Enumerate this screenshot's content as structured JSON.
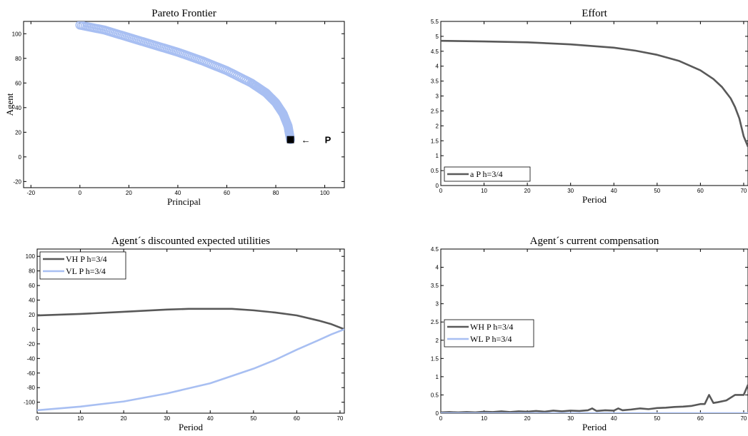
{
  "colors": {
    "dark": "#595959",
    "light": "#a8bff2",
    "axis": "#000000"
  },
  "chart_data": [
    {
      "type": "scatter",
      "title": "Pareto Frontier",
      "xlabel": "Principal",
      "ylabel": "Agent",
      "xlim": [
        -23,
        108
      ],
      "ylim": [
        -25,
        110
      ],
      "xticks": [
        -20,
        0,
        20,
        40,
        60,
        80,
        100
      ],
      "yticks": [
        -20,
        0,
        20,
        40,
        60,
        80,
        100
      ],
      "series": [
        {
          "color": "#a8bff2",
          "x": [
            0,
            10,
            20,
            30,
            40,
            50,
            60,
            70,
            76,
            80,
            83,
            85,
            86
          ],
          "y": [
            107,
            103,
            97,
            91,
            85,
            78,
            70,
            60,
            52,
            44,
            35,
            25,
            14
          ]
        }
      ],
      "point": {
        "x": 86,
        "y": 14,
        "label": "P",
        "arrow": "←"
      }
    },
    {
      "type": "line",
      "title": "Effort",
      "xlabel": "Period",
      "ylabel": "",
      "xlim": [
        0,
        71
      ],
      "ylim": [
        0,
        5.5
      ],
      "xticks": [
        0,
        10,
        20,
        30,
        40,
        50,
        60,
        70
      ],
      "yticks": [
        0,
        0.5,
        1,
        1.5,
        2,
        2.5,
        3,
        3.5,
        4,
        4.5,
        5,
        5.5
      ],
      "legend_position": "bottom-left",
      "series": [
        {
          "name": "a P h=3/4",
          "color": "#595959",
          "x": [
            0,
            10,
            20,
            30,
            40,
            45,
            50,
            55,
            60,
            63,
            65,
            67,
            68,
            69,
            70,
            71
          ],
          "y": [
            4.85,
            4.83,
            4.8,
            4.73,
            4.62,
            4.52,
            4.38,
            4.18,
            3.86,
            3.57,
            3.3,
            2.92,
            2.63,
            2.25,
            1.65,
            1.3
          ]
        }
      ]
    },
    {
      "type": "line",
      "title": "Agent´s discounted expected utilities",
      "xlabel": "Period",
      "ylabel": "",
      "xlim": [
        0,
        71
      ],
      "ylim": [
        -115,
        110
      ],
      "xticks": [
        0,
        10,
        20,
        30,
        40,
        50,
        60,
        70
      ],
      "yticks": [
        -100,
        -80,
        -60,
        -40,
        -20,
        0,
        20,
        40,
        60,
        80,
        100
      ],
      "legend_position": "top-left",
      "series": [
        {
          "name": "VH P h=3/4",
          "color": "#595959",
          "x": [
            0,
            10,
            20,
            30,
            35,
            40,
            45,
            50,
            55,
            60,
            65,
            68,
            71
          ],
          "y": [
            19,
            21,
            24,
            27,
            28,
            28,
            28,
            26,
            23,
            19,
            12,
            7,
            0
          ]
        },
        {
          "name": "VL P h=3/4",
          "color": "#a8bff2",
          "x": [
            0,
            10,
            20,
            30,
            40,
            50,
            55,
            60,
            65,
            68,
            71
          ],
          "y": [
            -111,
            -106,
            -99,
            -88,
            -74,
            -54,
            -42,
            -28,
            -15,
            -7,
            0
          ]
        }
      ]
    },
    {
      "type": "line",
      "title": "Agent´s current compensation",
      "xlabel": "Period",
      "ylabel": "",
      "xlim": [
        0,
        71
      ],
      "ylim": [
        0,
        4.5
      ],
      "xticks": [
        0,
        10,
        20,
        30,
        40,
        50,
        60,
        70
      ],
      "yticks": [
        0,
        0.5,
        1,
        1.5,
        2,
        2.5,
        3,
        3.5,
        4,
        4.5
      ],
      "legend_position": "center-left",
      "series": [
        {
          "name": "WH P h=3/4",
          "color": "#595959",
          "x": [
            0,
            2,
            4,
            6,
            8,
            10,
            12,
            14,
            16,
            18,
            20,
            22,
            24,
            26,
            28,
            30,
            32,
            34,
            35,
            36,
            38,
            40,
            41,
            42,
            44,
            46,
            48,
            50,
            52,
            54,
            56,
            58,
            60,
            61,
            62,
            63,
            64,
            66,
            68,
            70,
            71
          ],
          "y": [
            0.02,
            0.03,
            0.02,
            0.03,
            0.02,
            0.04,
            0.03,
            0.05,
            0.03,
            0.05,
            0.04,
            0.06,
            0.04,
            0.07,
            0.05,
            0.07,
            0.06,
            0.08,
            0.13,
            0.06,
            0.08,
            0.07,
            0.13,
            0.08,
            0.1,
            0.13,
            0.11,
            0.14,
            0.15,
            0.17,
            0.18,
            0.2,
            0.25,
            0.25,
            0.5,
            0.28,
            0.3,
            0.35,
            0.5,
            0.5,
            0.78
          ]
        },
        {
          "name": "WL P h=3/4",
          "color": "#a8bff2",
          "x": [
            0,
            71
          ],
          "y": [
            0,
            0
          ]
        }
      ]
    }
  ]
}
